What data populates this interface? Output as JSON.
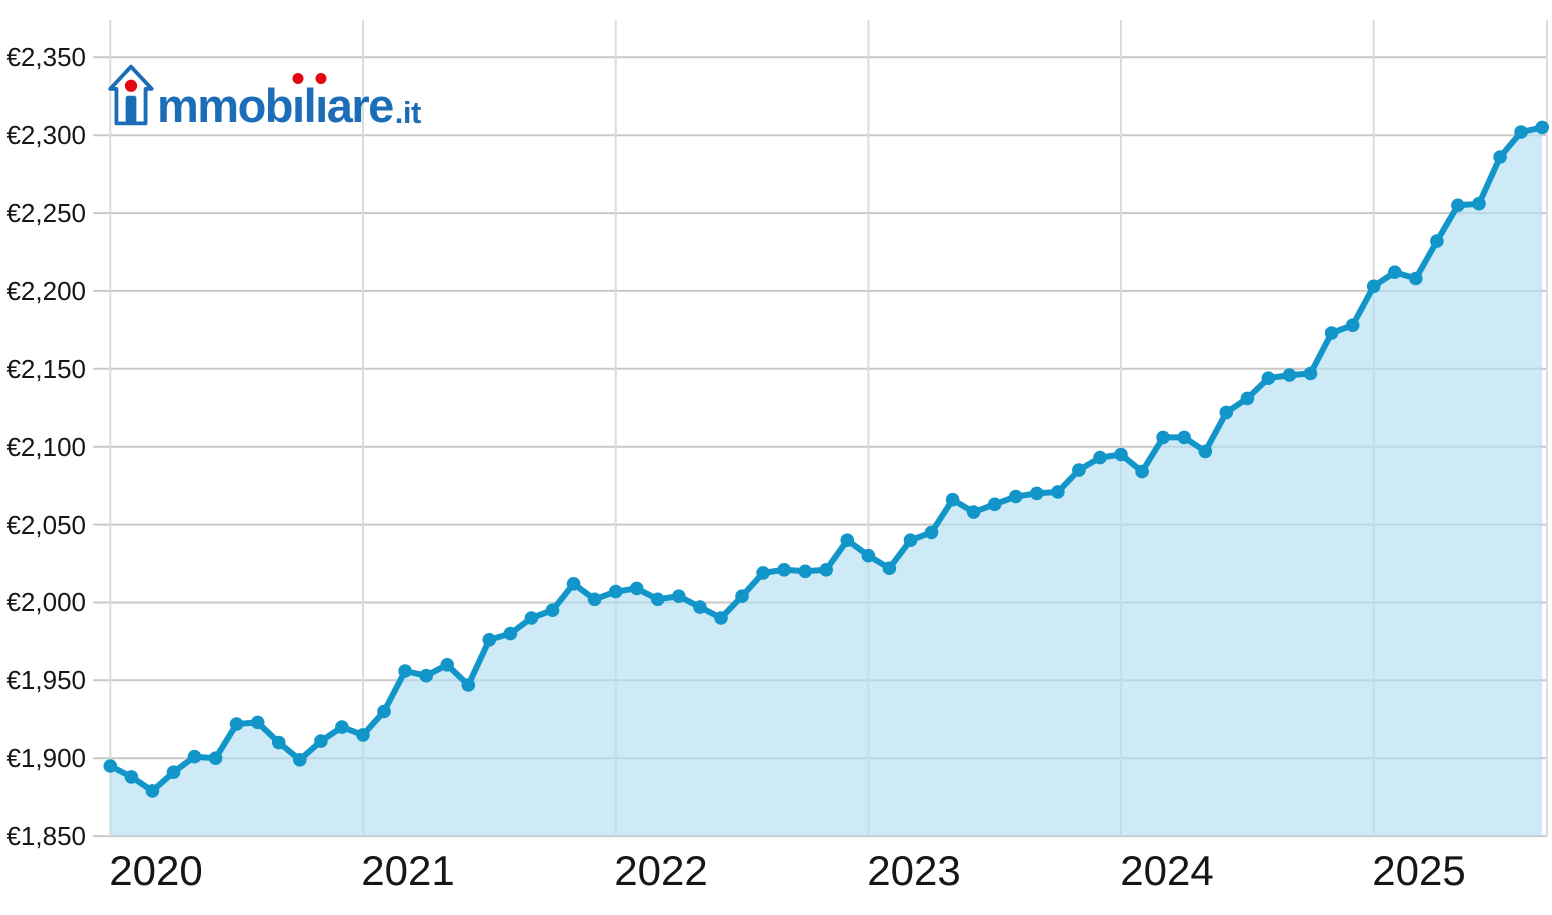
{
  "logo": {
    "full_text": "immobiliare.it",
    "house_glyph": "i",
    "seg1": "mmob",
    "dotted_i_1": "ı",
    "seg2": "l",
    "dotted_i_2": "ı",
    "seg3": "are",
    "suffix": ".it",
    "brand_blue": "#1b6db8",
    "brand_red": "#e30613"
  },
  "chart_data": {
    "type": "area",
    "title": "",
    "x_monthly_from": "2020-01",
    "x_monthly_to": "2025-09",
    "values": [
      1895,
      1888,
      1879,
      1891,
      1901,
      1900,
      1922,
      1923,
      1910,
      1899,
      1911,
      1920,
      1915,
      1930,
      1956,
      1953,
      1960,
      1947,
      1976,
      1980,
      1990,
      1995,
      2012,
      2002,
      2007,
      2009,
      2002,
      2004,
      1997,
      1990,
      2004,
      2019,
      2021,
      2020,
      2021,
      2040,
      2030,
      2022,
      2040,
      2045,
      2066,
      2058,
      2063,
      2068,
      2070,
      2071,
      2085,
      2093,
      2095,
      2084,
      2106,
      2106,
      2097,
      2122,
      2131,
      2144,
      2146,
      2147,
      2173,
      2178,
      2203,
      2212,
      2208,
      2232,
      2255,
      2256,
      2286,
      2302,
      2305
    ],
    "x_tick_labels": [
      "2020",
      "2021",
      "2022",
      "2023",
      "2024",
      "2025"
    ],
    "y_tick_labels": [
      "€2,350",
      "€2,300",
      "€2,250",
      "€2,200",
      "€2,150",
      "€2,100",
      "€2,050",
      "€2,000",
      "€1,950",
      "€1,900",
      "€1,850"
    ],
    "ylim": [
      1850,
      2350
    ],
    "y_tick_step": 50,
    "grid": true,
    "legend": "none",
    "colors": {
      "line": "#1295c9",
      "dot": "#1295c9",
      "fill": "#b2def1",
      "fill_opacity": 0.65,
      "grid_horizontal": "#c9c9c9",
      "grid_vertical": "#dcdcdc",
      "axis_text": "#161616"
    }
  }
}
